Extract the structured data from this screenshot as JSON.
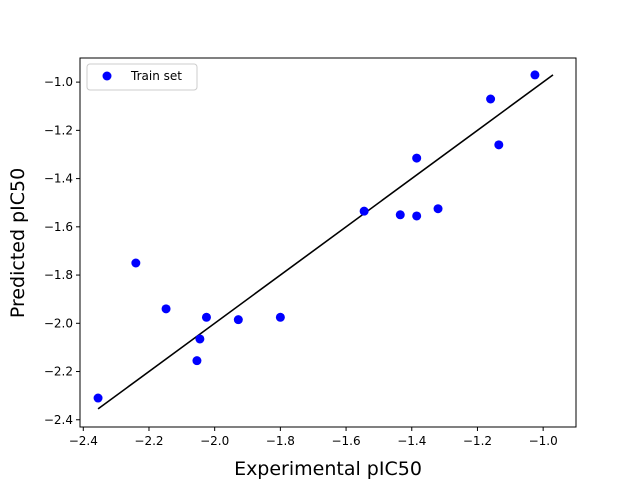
{
  "chart_data": {
    "type": "scatter",
    "title": "",
    "xlabel": "Experimental pIC50",
    "ylabel": "Predicted pIC50",
    "xlim": [
      -2.41,
      -0.9
    ],
    "ylim": [
      -2.43,
      -0.9
    ],
    "xticks": [
      -2.4,
      -2.2,
      -2.0,
      -1.8,
      -1.6,
      -1.4,
      -1.2,
      -1.0
    ],
    "xtick_labels": [
      "−2.4",
      "−2.2",
      "−2.0",
      "−1.8",
      "−1.6",
      "−1.4",
      "−1.2",
      "−1.0"
    ],
    "yticks": [
      -2.4,
      -2.2,
      -2.0,
      -1.8,
      -1.6,
      -1.4,
      -1.2,
      -1.0
    ],
    "ytick_labels": [
      "−2.4",
      "−2.2",
      "−2.0",
      "−1.8",
      "−1.6",
      "−1.4",
      "−1.2",
      "−1.0"
    ],
    "grid": false,
    "legend": {
      "position": "top-left"
    },
    "series": [
      {
        "name": "Train set",
        "color": "#0000ff",
        "marker": "circle",
        "points": [
          {
            "x": -2.355,
            "y": -2.31
          },
          {
            "x": -2.24,
            "y": -1.75
          },
          {
            "x": -2.148,
            "y": -1.94
          },
          {
            "x": -2.054,
            "y": -2.155
          },
          {
            "x": -2.045,
            "y": -2.065
          },
          {
            "x": -2.025,
            "y": -1.975
          },
          {
            "x": -1.928,
            "y": -1.985
          },
          {
            "x": -1.8,
            "y": -1.975
          },
          {
            "x": -1.545,
            "y": -1.535
          },
          {
            "x": -1.435,
            "y": -1.55
          },
          {
            "x": -1.385,
            "y": -1.555
          },
          {
            "x": -1.385,
            "y": -1.315
          },
          {
            "x": -1.32,
            "y": -1.525
          },
          {
            "x": -1.16,
            "y": -1.07
          },
          {
            "x": -1.135,
            "y": -1.26
          },
          {
            "x": -1.025,
            "y": -0.97
          }
        ]
      }
    ],
    "reference_line": {
      "color": "#000000",
      "from": {
        "x": -2.355,
        "y": -2.355
      },
      "to": {
        "x": -0.97,
        "y": -0.97
      }
    }
  }
}
